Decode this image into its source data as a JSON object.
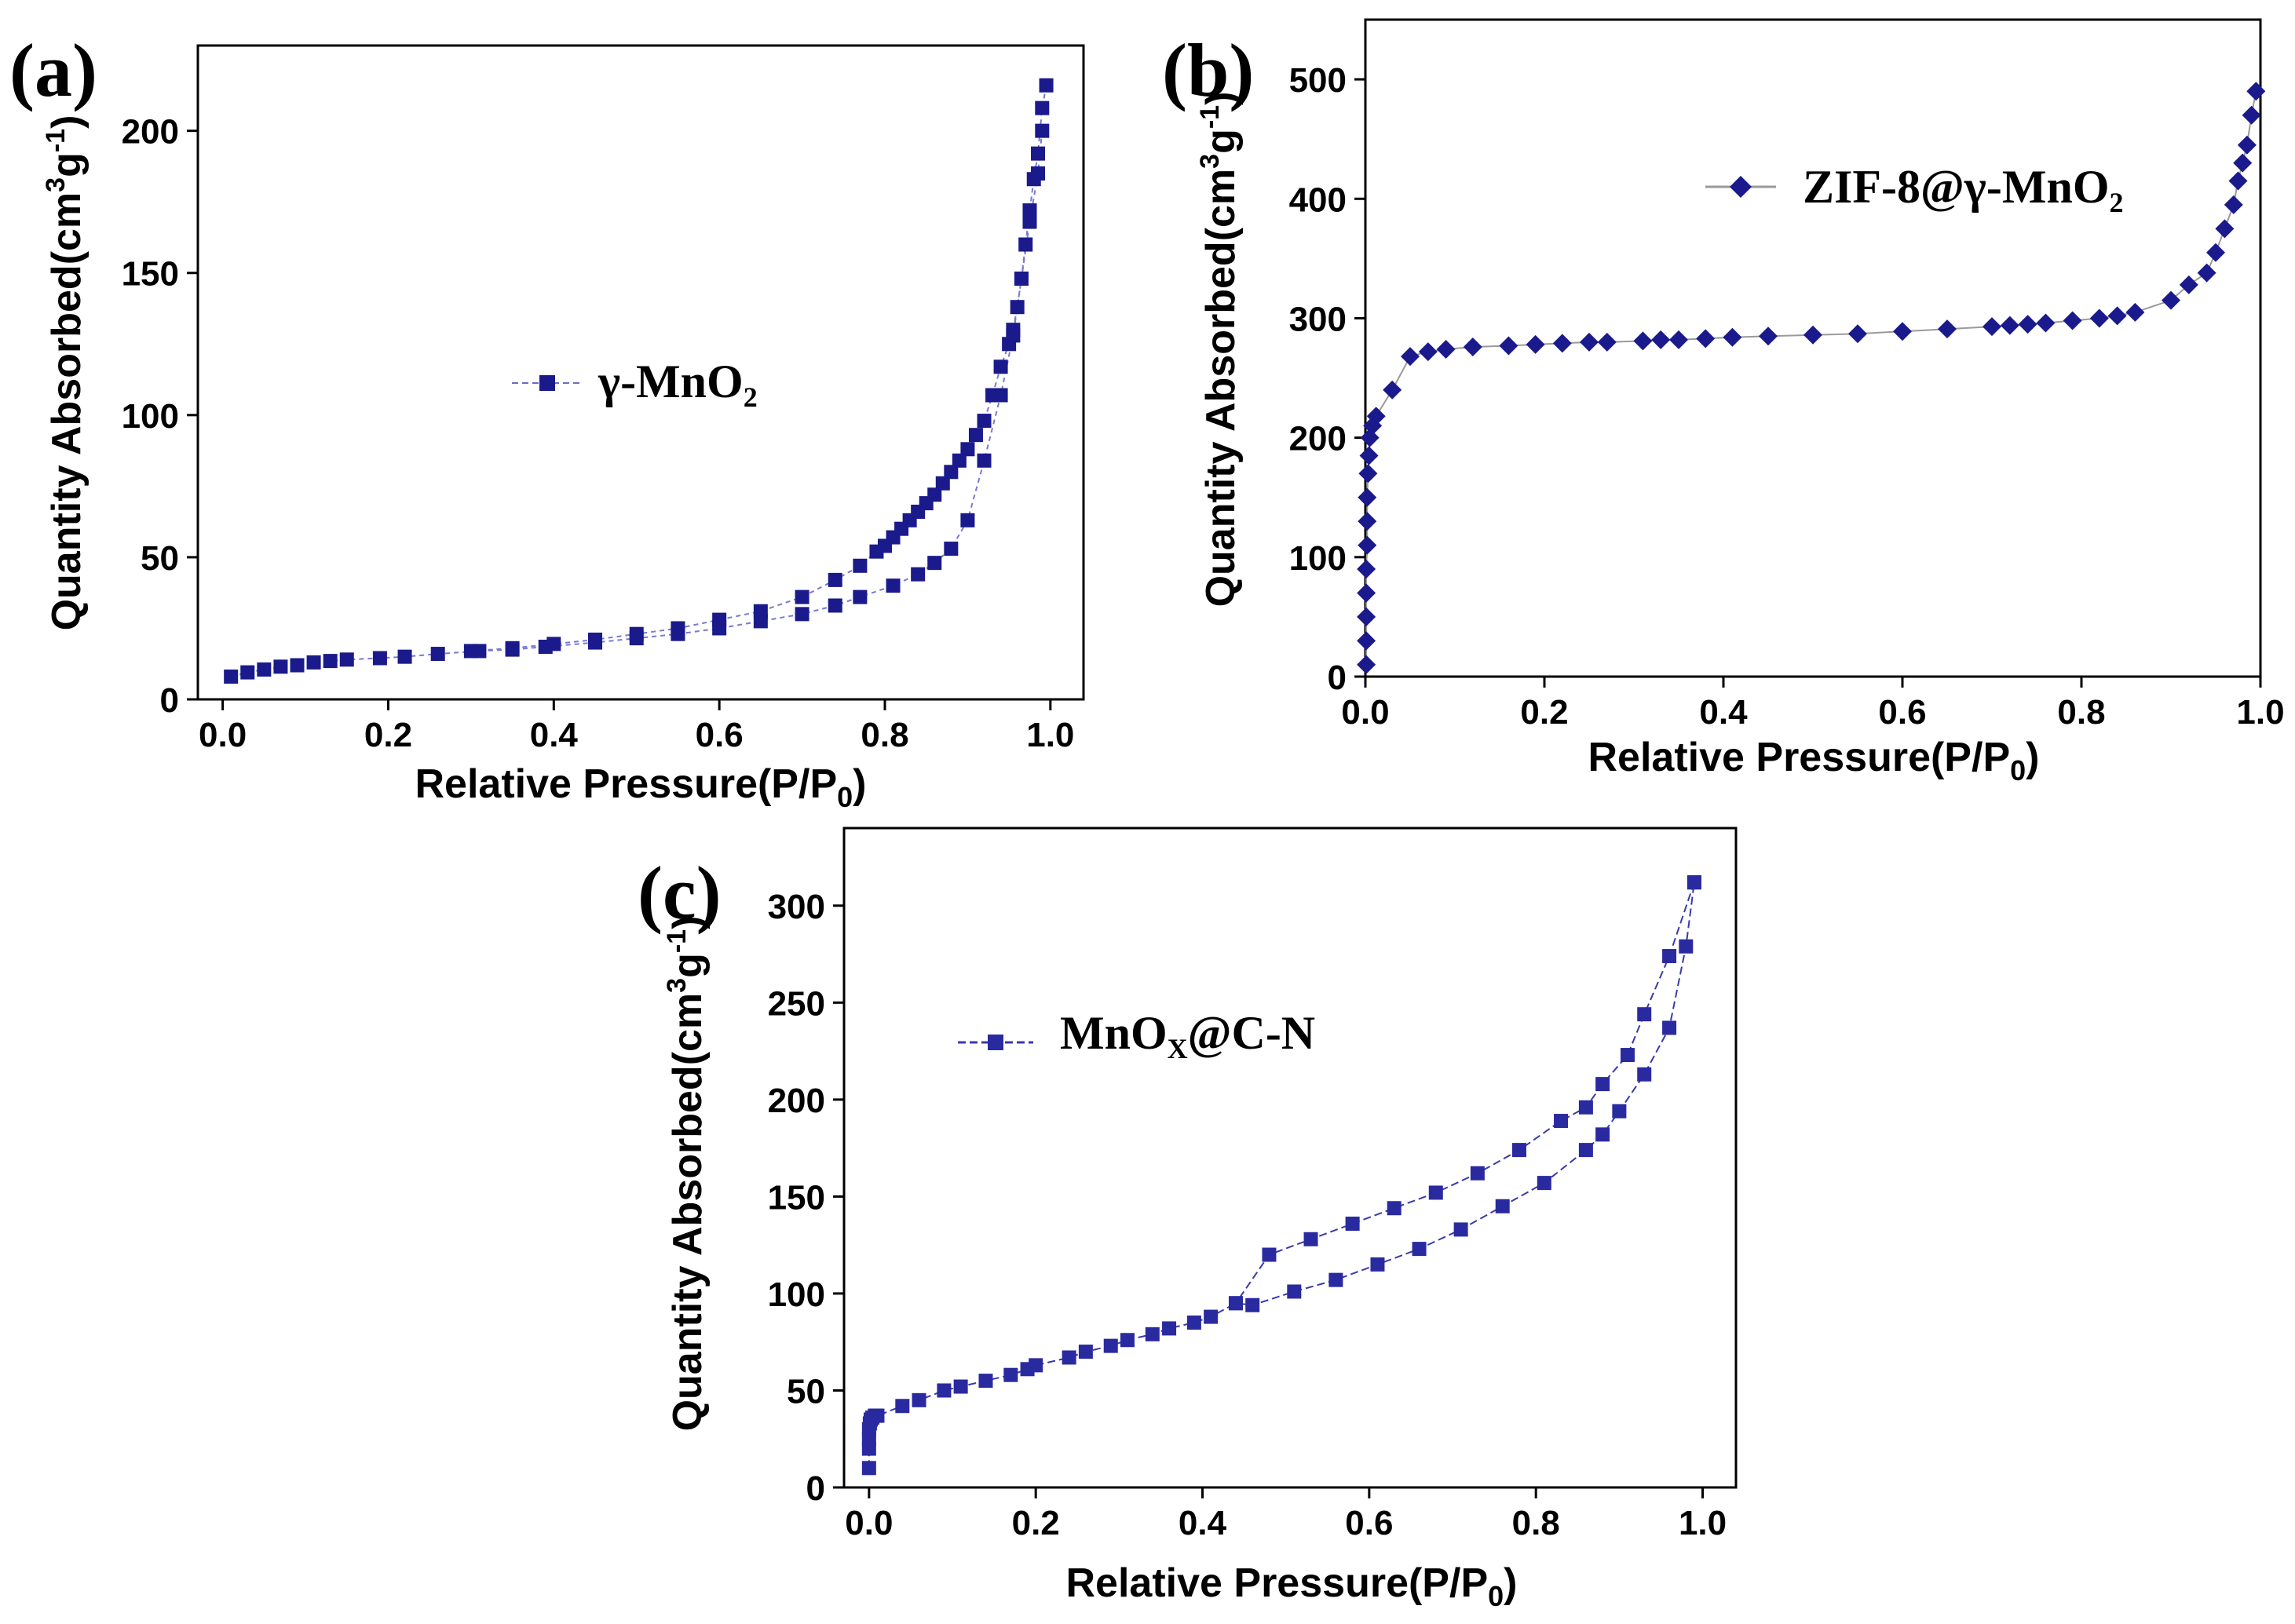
{
  "chart_data": [
    {
      "type": "scatter",
      "panel_label": "(a)",
      "legend": {
        "label_main": "γ-MnO",
        "label_sub": "2",
        "marker": "square",
        "position": "center"
      },
      "xlabel_main": "Relative Pressure(P/P",
      "xlabel_sub": "0",
      "xlabel_end": ")",
      "ylabel_a": "Quantity Absorbed(cm",
      "ylabel_sup1": "3",
      "ylabel_b": "g",
      "ylabel_sup2": "-1",
      "ylabel_c": ")",
      "xlim": [
        -0.03,
        1.04
      ],
      "ylim": [
        0,
        230
      ],
      "xticks": [
        0.0,
        0.2,
        0.4,
        0.6,
        0.8,
        1.0
      ],
      "xtick_labels": [
        "0.0",
        "0.2",
        "0.4",
        "0.6",
        "0.8",
        "1.0"
      ],
      "yticks": [
        0,
        50,
        100,
        150,
        200
      ],
      "ytick_labels": [
        "0",
        "50",
        "100",
        "150",
        "200"
      ],
      "color": "#1a1a8c",
      "series": [
        {
          "name": "adsorption",
          "x": [
            0.01,
            0.03,
            0.05,
            0.07,
            0.09,
            0.11,
            0.13,
            0.15,
            0.19,
            0.22,
            0.26,
            0.31,
            0.35,
            0.39,
            0.45,
            0.5,
            0.55,
            0.6,
            0.65,
            0.7,
            0.74,
            0.77,
            0.81,
            0.84,
            0.86,
            0.88,
            0.9,
            0.92,
            0.94,
            0.955,
            0.965,
            0.975,
            0.985,
            0.99
          ],
          "y": [
            8,
            9.5,
            10.5,
            11.5,
            12,
            13,
            13.5,
            14,
            14.5,
            15,
            16,
            17,
            17.5,
            18.5,
            20,
            21.5,
            23,
            25,
            27.5,
            30,
            33,
            36,
            40,
            44,
            48,
            53,
            63,
            84,
            107,
            128,
            148,
            168,
            185,
            200
          ]
        },
        {
          "name": "desorption",
          "x": [
            0.995,
            0.99,
            0.985,
            0.98,
            0.975,
            0.97,
            0.965,
            0.96,
            0.955,
            0.95,
            0.94,
            0.93,
            0.92,
            0.91,
            0.9,
            0.89,
            0.88,
            0.87,
            0.86,
            0.85,
            0.84,
            0.83,
            0.82,
            0.81,
            0.8,
            0.79,
            0.77,
            0.74,
            0.7,
            0.65,
            0.6,
            0.55,
            0.5,
            0.45,
            0.4,
            0.35,
            0.3
          ],
          "y": [
            216,
            208,
            192,
            183,
            172,
            160,
            148,
            138,
            130,
            125,
            117,
            107,
            98,
            93,
            88,
            84,
            80,
            76,
            72,
            69,
            66,
            63,
            60,
            57,
            54,
            52,
            47,
            42,
            36,
            31,
            28,
            25,
            23,
            21,
            19.5,
            18,
            17
          ]
        }
      ]
    },
    {
      "type": "scatter",
      "panel_label": "(b)",
      "legend": {
        "label_main": "ZIF-8@γ-MnO",
        "label_sub": "2",
        "marker": "diamond",
        "position": "top-right"
      },
      "xlabel_main": "Relative Pressure(P/P",
      "xlabel_sub": "0",
      "xlabel_end": ")",
      "ylabel_a": "Quantity Absorbed(cm",
      "ylabel_sup1": "3",
      "ylabel_b": "g",
      "ylabel_sup2": "-1",
      "ylabel_c": ")",
      "xlim": [
        0,
        1.0
      ],
      "ylim": [
        0,
        550
      ],
      "xticks": [
        0.0,
        0.2,
        0.4,
        0.6,
        0.8,
        1.0
      ],
      "xtick_labels": [
        "0.0",
        "0.2",
        "0.4",
        "0.6",
        "0.8",
        "1.0"
      ],
      "yticks": [
        0,
        100,
        200,
        300,
        400,
        500
      ],
      "ytick_labels": [
        "0",
        "100",
        "200",
        "300",
        "400",
        "500"
      ],
      "color": "#1a1a8c",
      "series": [
        {
          "name": "isotherm",
          "x": [
            0.001,
            0.001,
            0.001,
            0.001,
            0.001,
            0.002,
            0.002,
            0.002,
            0.003,
            0.004,
            0.005,
            0.008,
            0.012,
            0.03,
            0.05,
            0.07,
            0.09,
            0.12,
            0.16,
            0.19,
            0.22,
            0.25,
            0.27,
            0.31,
            0.33,
            0.35,
            0.38,
            0.41,
            0.45,
            0.5,
            0.55,
            0.6,
            0.65,
            0.7,
            0.72,
            0.74,
            0.76,
            0.79,
            0.82,
            0.84,
            0.86,
            0.9,
            0.92,
            0.94,
            0.95,
            0.96,
            0.97,
            0.975,
            0.98,
            0.985,
            0.99,
            0.995
          ],
          "y": [
            10,
            30,
            50,
            70,
            90,
            110,
            130,
            150,
            170,
            185,
            200,
            210,
            218,
            240,
            268,
            272,
            274,
            276,
            277,
            278,
            279,
            280,
            280,
            281,
            282,
            282,
            283,
            284,
            285,
            286,
            287,
            289,
            291,
            293,
            294,
            295,
            296,
            298,
            300,
            302,
            305,
            315,
            328,
            338,
            355,
            375,
            395,
            415,
            430,
            445,
            470,
            490
          ]
        }
      ]
    },
    {
      "type": "scatter",
      "panel_label": "(c)",
      "legend": {
        "label_main": "MnO",
        "label_sub": "X",
        "label_end": "@C-N",
        "marker": "square",
        "position": "top-center"
      },
      "xlabel_main": "Relative Pressure(P/P",
      "xlabel_sub": "0",
      "xlabel_end": ")",
      "ylabel_a": "Quantity Absorbed(cm",
      "ylabel_sup1": "3",
      "ylabel_b": "g",
      "ylabel_sup2": "-1",
      "ylabel_c": ")",
      "xlim": [
        -0.03,
        1.04
      ],
      "ylim": [
        0,
        340
      ],
      "xticks": [
        0.0,
        0.2,
        0.4,
        0.6,
        0.8,
        1.0
      ],
      "xtick_labels": [
        "0.0",
        "0.2",
        "0.4",
        "0.6",
        "0.8",
        "1.0"
      ],
      "yticks": [
        0,
        50,
        100,
        150,
        200,
        250,
        300
      ],
      "ytick_labels": [
        "0",
        "50",
        "100",
        "150",
        "200",
        "250",
        "300"
      ],
      "color": "#2a2aa0",
      "series": [
        {
          "name": "adsorption",
          "x": [
            0.0,
            0.0,
            0.0,
            0.0,
            0.001,
            0.002,
            0.004,
            0.007,
            0.01,
            0.04,
            0.06,
            0.09,
            0.11,
            0.14,
            0.17,
            0.19,
            0.2,
            0.24,
            0.26,
            0.29,
            0.31,
            0.34,
            0.36,
            0.39,
            0.41,
            0.44,
            0.46,
            0.51,
            0.56,
            0.61,
            0.66,
            0.71,
            0.76,
            0.81,
            0.86,
            0.88,
            0.9,
            0.93,
            0.96,
            0.98,
            0.99
          ],
          "y": [
            10,
            20,
            25,
            30,
            33,
            35,
            36,
            37,
            37,
            42,
            45,
            50,
            52,
            55,
            58,
            61,
            63,
            67,
            70,
            73,
            76,
            79,
            82,
            85,
            88,
            95,
            94,
            101,
            107,
            115,
            123,
            133,
            145,
            157,
            174,
            182,
            194,
            213,
            237,
            279,
            312
          ]
        },
        {
          "name": "desorption",
          "x": [
            0.99,
            0.96,
            0.93,
            0.91,
            0.88,
            0.86,
            0.83,
            0.78,
            0.73,
            0.68,
            0.63,
            0.58,
            0.53,
            0.48,
            0.44
          ],
          "y": [
            312,
            274,
            244,
            223,
            208,
            196,
            189,
            174,
            162,
            152,
            144,
            136,
            128,
            120,
            95
          ]
        }
      ]
    }
  ]
}
